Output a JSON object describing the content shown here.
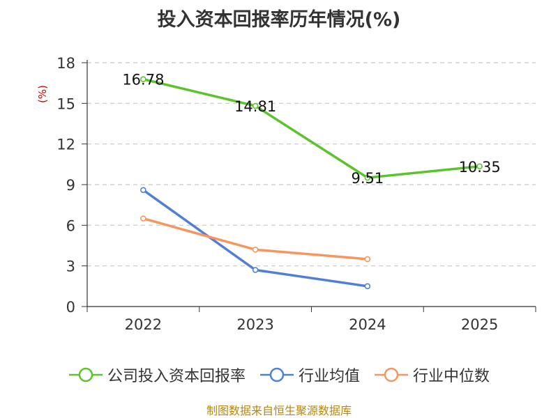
{
  "chart_data": {
    "type": "line",
    "title": "投入资本回报率历年情况(%)",
    "ylabel": "(%)",
    "xlabel": "",
    "categories": [
      "2022",
      "2023",
      "2024",
      "2025"
    ],
    "ylim": [
      0,
      18
    ],
    "yticks": [
      0,
      3,
      6,
      9,
      12,
      15,
      18
    ],
    "grid": true,
    "legend_position": "bottom",
    "series": [
      {
        "name": "公司投入资本回报率",
        "color": "#5ac42a",
        "values": [
          16.78,
          14.81,
          9.51,
          10.35
        ],
        "labels": [
          "16.78",
          "14.81",
          "9.51",
          "10.35"
        ]
      },
      {
        "name": "行业均值",
        "color": "#4f7fd8",
        "values": [
          8.6,
          2.7,
          1.5,
          null
        ],
        "labels": []
      },
      {
        "name": "行业中位数",
        "color": "#f79560",
        "values": [
          6.5,
          4.2,
          3.5,
          null
        ],
        "labels": []
      }
    ]
  },
  "source_text": "制图数据来自恒生聚源数据库"
}
